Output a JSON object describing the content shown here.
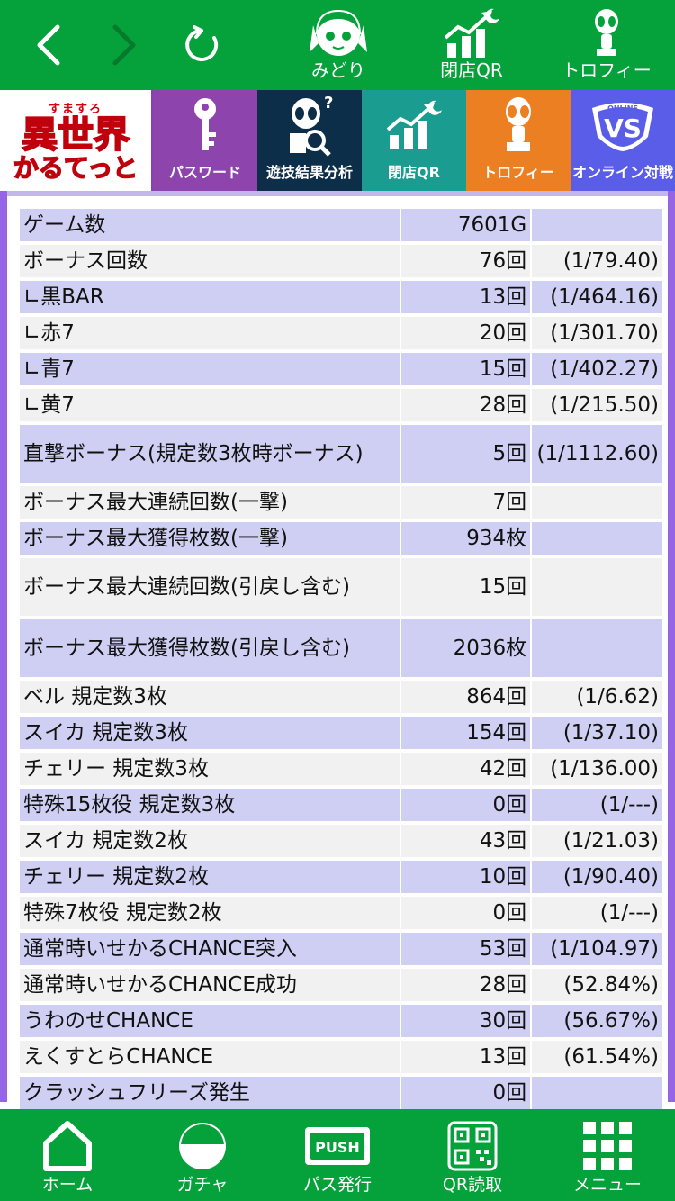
{
  "top_nav": {
    "back_icon": "chevron-left-icon",
    "forward_icon": "chevron-right-icon",
    "reload_icon": "reload-icon",
    "midori": "みどり",
    "closing_qr": "閉店QR",
    "trophy": "トロフィー"
  },
  "logo": {
    "small": "すますろ",
    "big": "異世界",
    "sub": "かるてっと"
  },
  "tiles": {
    "password": "パスワード",
    "analysis": "遊技結果分析",
    "closing_qr": "閉店QR",
    "trophy": "トロフィー",
    "online": "オンライン対戦",
    "online_badge": "ONLINE",
    "vs": "VS"
  },
  "stats": [
    {
      "label": "ゲーム数",
      "value": "7601G",
      "ratio": ""
    },
    {
      "label": "ボーナス回数",
      "value": "76回",
      "ratio": "(1/79.40)"
    },
    {
      "label": "∟黒BAR",
      "value": "13回",
      "ratio": "(1/464.16)"
    },
    {
      "label": "∟赤7",
      "value": "20回",
      "ratio": "(1/301.70)"
    },
    {
      "label": "∟青7",
      "value": "15回",
      "ratio": "(1/402.27)"
    },
    {
      "label": "∟黄7",
      "value": "28回",
      "ratio": "(1/215.50)"
    },
    {
      "label": "直撃ボーナス(規定数3枚時ボーナス)",
      "value": "5回",
      "ratio": "(1/1112.60)"
    },
    {
      "label": "ボーナス最大連続回数(一撃)",
      "value": "7回",
      "ratio": ""
    },
    {
      "label": "ボーナス最大獲得枚数(一撃)",
      "value": "934枚",
      "ratio": ""
    },
    {
      "label": "ボーナス最大連続回数(引戻し含む)",
      "value": "15回",
      "ratio": ""
    },
    {
      "label": "ボーナス最大獲得枚数(引戻し含む)",
      "value": "2036枚",
      "ratio": ""
    },
    {
      "label": "ベル 規定数3枚",
      "value": "864回",
      "ratio": "(1/6.62)"
    },
    {
      "label": "スイカ 規定数3枚",
      "value": "154回",
      "ratio": "(1/37.10)"
    },
    {
      "label": "チェリー 規定数3枚",
      "value": "42回",
      "ratio": "(1/136.00)"
    },
    {
      "label": "特殊15枚役 規定数3枚",
      "value": "0回",
      "ratio": "(1/---)"
    },
    {
      "label": "スイカ 規定数2枚",
      "value": "43回",
      "ratio": "(1/21.03)"
    },
    {
      "label": "チェリー 規定数2枚",
      "value": "10回",
      "ratio": "(1/90.40)"
    },
    {
      "label": "特殊7枚役 規定数2枚",
      "value": "0回",
      "ratio": "(1/---)"
    },
    {
      "label": "通常時いせかるCHANCE突入",
      "value": "53回",
      "ratio": "(1/104.97)"
    },
    {
      "label": "通常時いせかるCHANCE成功",
      "value": "28回",
      "ratio": "(52.84%)"
    },
    {
      "label": "うわのせCHANCE",
      "value": "30回",
      "ratio": "(56.67%)"
    },
    {
      "label": "えくすとらCHANCE",
      "value": "13回",
      "ratio": "(61.54%)"
    },
    {
      "label": "クラッシュフリーズ発生",
      "value": "0回",
      "ratio": ""
    }
  ],
  "bottom_nav": {
    "home": "ホーム",
    "gacha": "ガチャ",
    "pass": "パス発行",
    "push_badge": "PUSH",
    "qr": "QR読取",
    "menu": "メニュー"
  },
  "colors": {
    "green": "#05a13a",
    "purple_frame": "#9565e6",
    "row_purple": "#cfcff3",
    "row_gray": "#f1f1f1"
  }
}
